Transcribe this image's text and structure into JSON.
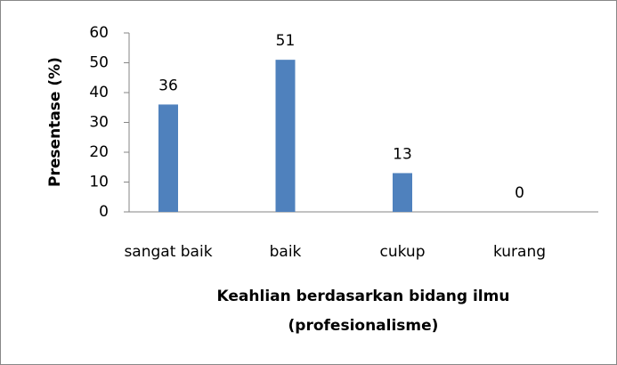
{
  "chart_data": {
    "type": "bar",
    "categories": [
      "sangat baik",
      "baik",
      "cukup",
      "kurang"
    ],
    "values": [
      36,
      51,
      13,
      0
    ],
    "color": "#4f81bd",
    "ylim": [
      0,
      60
    ],
    "yticks": [
      0,
      10,
      20,
      30,
      40,
      50,
      60
    ],
    "y_label": "Presentase (%)",
    "x_label": [
      "Keahlian berdasarkan bidang ilmu",
      "(profesionalisme)"
    ],
    "grid": false
  }
}
